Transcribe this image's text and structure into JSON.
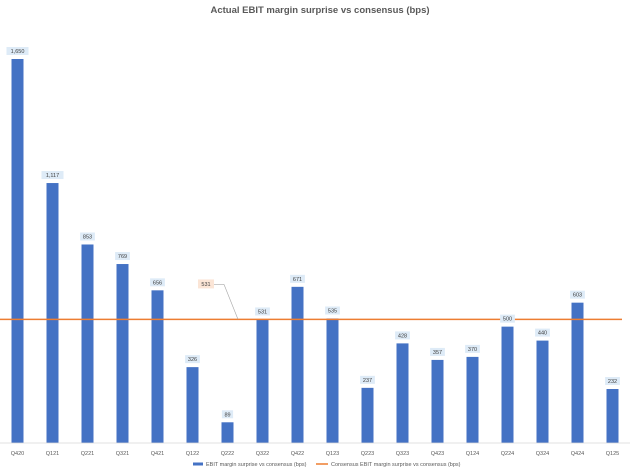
{
  "chart_data": {
    "type": "bar",
    "title": "Actual EBIT margin surprise vs consensus (bps)",
    "categories": [
      "Q420",
      "Q121",
      "Q221",
      "Q321",
      "Q421",
      "Q122",
      "Q222",
      "Q322",
      "Q422",
      "Q123",
      "Q223",
      "Q323",
      "Q423",
      "Q124",
      "Q224",
      "Q324",
      "Q424",
      "Q125"
    ],
    "series": [
      {
        "name": "EBIT margin surprise vs consensus (bps)",
        "type": "bar",
        "color": "#4472C4",
        "values": [
          1650,
          1117,
          853,
          769,
          656,
          326,
          89,
          531,
          671,
          535,
          237,
          428,
          357,
          370,
          500,
          440,
          603,
          232
        ],
        "labels": [
          "1,650",
          "1,117",
          "853",
          "769",
          "656",
          "326",
          "89",
          "531",
          "671",
          "535",
          "237",
          "428",
          "357",
          "370",
          "500",
          "440",
          "603",
          "232"
        ]
      },
      {
        "name": "Consensus EBIT margin surprise vs consensus (bps)",
        "type": "line",
        "color": "#ED7D31",
        "value": 531,
        "label": "531"
      }
    ],
    "ylim": [
      0,
      1650
    ],
    "grid": false,
    "legend": "bottom"
  }
}
